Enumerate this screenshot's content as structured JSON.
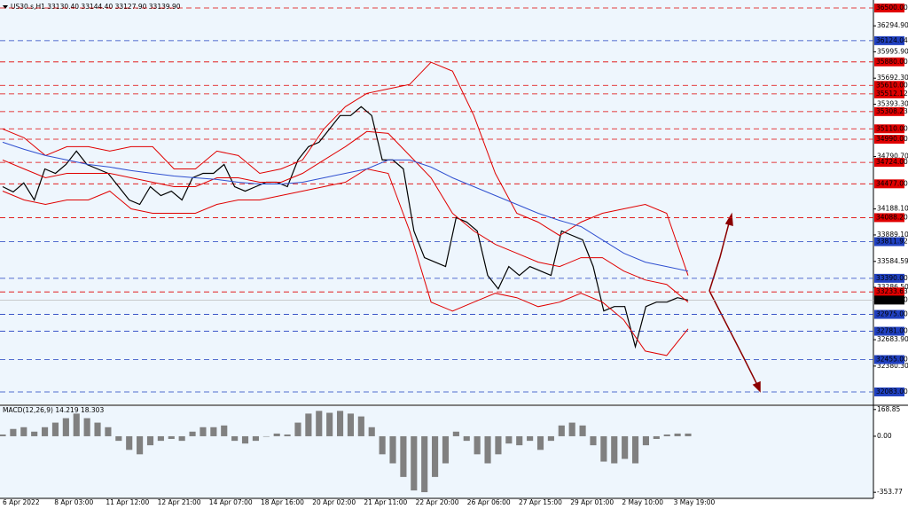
{
  "chart_data": [
    {
      "type": "candle-line",
      "title": "US30.s,H1  33130.40 33144.40 33127.90 33139.90",
      "background": "#eef6fd",
      "ylim": [
        31940,
        36592
      ],
      "yticks": [
        {
          "value": 36294.9,
          "label": "36294.90"
        },
        {
          "value": 35995.9,
          "label": "35995.90"
        },
        {
          "value": 35692.3,
          "label": "35692.30"
        },
        {
          "value": 35393.3,
          "label": "35393.30"
        },
        {
          "value": 34790.7,
          "label": "34790.70"
        },
        {
          "value": 34188.1,
          "label": "34188.10"
        },
        {
          "value": 33889.1,
          "label": "33889.10"
        },
        {
          "value": 33584.59,
          "label": "33584.59"
        },
        {
          "value": 33286.5,
          "label": "33286.50"
        },
        {
          "value": 32683.9,
          "label": "32683.90"
        },
        {
          "value": 32380.3,
          "label": "32380.30"
        }
      ],
      "levels": [
        {
          "value": 36500,
          "label": "36500.00",
          "color": "#e00000"
        },
        {
          "value": 36124.04,
          "label": "36124.04",
          "color": "#2040c0"
        },
        {
          "value": 35880,
          "label": "35880.00",
          "color": "#e00000"
        },
        {
          "value": 35610,
          "label": "35610.00",
          "color": "#e00000"
        },
        {
          "value": 35512.12,
          "label": "35512.12",
          "color": "#e00000"
        },
        {
          "value": 35308.23,
          "label": "35308.23",
          "color": "#e00000"
        },
        {
          "value": 35110,
          "label": "35110.00",
          "color": "#e00000"
        },
        {
          "value": 34990,
          "label": "34990.00",
          "color": "#e00000"
        },
        {
          "value": 34724,
          "label": "34724.00",
          "color": "#e00000"
        },
        {
          "value": 34477,
          "label": "34477.00",
          "color": "#e00000"
        },
        {
          "value": 34088.2,
          "label": "34088.20",
          "color": "#e00000"
        },
        {
          "value": 33811.92,
          "label": "33811.92",
          "color": "#2040c0"
        },
        {
          "value": 33390,
          "label": "33390.00",
          "color": "#2040c0"
        },
        {
          "value": 33233.63,
          "label": "33233.63",
          "color": "#e00000"
        },
        {
          "value": 32975,
          "label": "32975.00",
          "color": "#2040c0"
        },
        {
          "value": 32781,
          "label": "32781.00",
          "color": "#2040c0"
        },
        {
          "value": 32455,
          "label": "32455.00",
          "color": "#2040c0"
        },
        {
          "value": 32083,
          "label": "32083.00",
          "color": "#2040c0"
        }
      ],
      "current": {
        "value": 33139.9,
        "label": "33139.90",
        "color": "#000000"
      },
      "x_labels": [
        "6 Apr 2022",
        "8 Apr 03:00",
        "11 Apr 12:00",
        "12 Apr 21:00",
        "14 Apr 07:00",
        "18 Apr 16:00",
        "20 Apr 02:00",
        "21 Apr 11:00",
        "22 Apr 20:00",
        "26 Apr 06:00",
        "27 Apr 15:00",
        "29 Apr 01:00",
        "2 May 10:00",
        "3 May 19:00"
      ],
      "series": [
        {
          "name": "Price",
          "color": "#000000",
          "values": [
            34445,
            34384,
            34487,
            34291,
            34649,
            34598,
            34700,
            34854,
            34700,
            34649,
            34598,
            34445,
            34291,
            34240,
            34445,
            34342,
            34393,
            34291,
            34547,
            34598,
            34598,
            34700,
            34445,
            34393,
            34445,
            34496,
            34496,
            34445,
            34752,
            34905,
            34956,
            35109,
            35263,
            35263,
            35365,
            35263,
            34752,
            34752,
            34649,
            33934,
            33627,
            33576,
            33525,
            34088,
            34037,
            33934,
            33423,
            33269,
            33525,
            33423,
            33525,
            33474,
            33423,
            33934,
            33883,
            33832,
            33525,
            33014,
            33065,
            33065,
            32603,
            33065,
            33116,
            33116,
            33167,
            33140
          ]
        },
        {
          "name": "Upper band",
          "color": "#e00000",
          "values": [
            35109,
            35007,
            34803,
            34905,
            34905,
            34854,
            34905,
            34905,
            34649,
            34649,
            34854,
            34803,
            34598,
            34649,
            34752,
            35109,
            35365,
            35518,
            35570,
            35621,
            35876,
            35774,
            35263,
            34598,
            34138,
            34036,
            33882,
            34036,
            34138,
            34189,
            34240,
            34138,
            33422
          ]
        },
        {
          "name": "Middle band",
          "color": "#e00000",
          "values": [
            34752,
            34649,
            34547,
            34598,
            34598,
            34598,
            34547,
            34496,
            34445,
            34445,
            34547,
            34547,
            34496,
            34496,
            34598,
            34752,
            34905,
            35079,
            35058,
            34803,
            34547,
            34138,
            33934,
            33780,
            33678,
            33576,
            33525,
            33627,
            33627,
            33473,
            33371,
            33320,
            33116
          ]
        },
        {
          "name": "Lower band",
          "color": "#e00000",
          "values": [
            34394,
            34291,
            34240,
            34291,
            34291,
            34394,
            34189,
            34138,
            34138,
            34138,
            34240,
            34291,
            34291,
            34343,
            34394,
            34445,
            34496,
            34649,
            34598,
            33934,
            33116,
            33013,
            33116,
            33218,
            33167,
            33064,
            33116,
            33218,
            33116,
            32911,
            32553,
            32502,
            32809
          ]
        },
        {
          "name": "Moving average",
          "color": "#3050d0",
          "values": [
            34956,
            34874,
            34803,
            34752,
            34700,
            34670,
            34629,
            34598,
            34567,
            34547,
            34527,
            34496,
            34475,
            34475,
            34496,
            34547,
            34598,
            34649,
            34752,
            34752,
            34670,
            34547,
            34445,
            34343,
            34240,
            34138,
            34056,
            33985,
            33831,
            33678,
            33576,
            33525,
            33473
          ]
        }
      ]
    },
    {
      "type": "histogram",
      "title": "MACD(12,26,9) 14.219 18.303",
      "color": "#808080",
      "ylim": [
        -392,
        190
      ],
      "yticks": [
        {
          "value": 168.85,
          "label": "168.85"
        },
        {
          "value": 0,
          "label": "0.00"
        },
        {
          "value": -353.77,
          "label": "-353.77"
        }
      ],
      "values": [
        11,
        46,
        57,
        29,
        57,
        86,
        114,
        143,
        114,
        86,
        57,
        -29,
        -86,
        -114,
        -57,
        -29,
        -17,
        -29,
        29,
        57,
        57,
        68,
        -29,
        -46,
        -29,
        0,
        17,
        11,
        86,
        143,
        160,
        148,
        160,
        143,
        125,
        57,
        -114,
        -171,
        -257,
        -342,
        -353,
        -257,
        -171,
        29,
        -29,
        -114,
        -171,
        -114,
        -46,
        -57,
        -29,
        -86,
        -29,
        68,
        86,
        68,
        -57,
        -160,
        -171,
        -143,
        -171,
        -57,
        -17,
        11,
        17,
        17
      ]
    }
  ]
}
